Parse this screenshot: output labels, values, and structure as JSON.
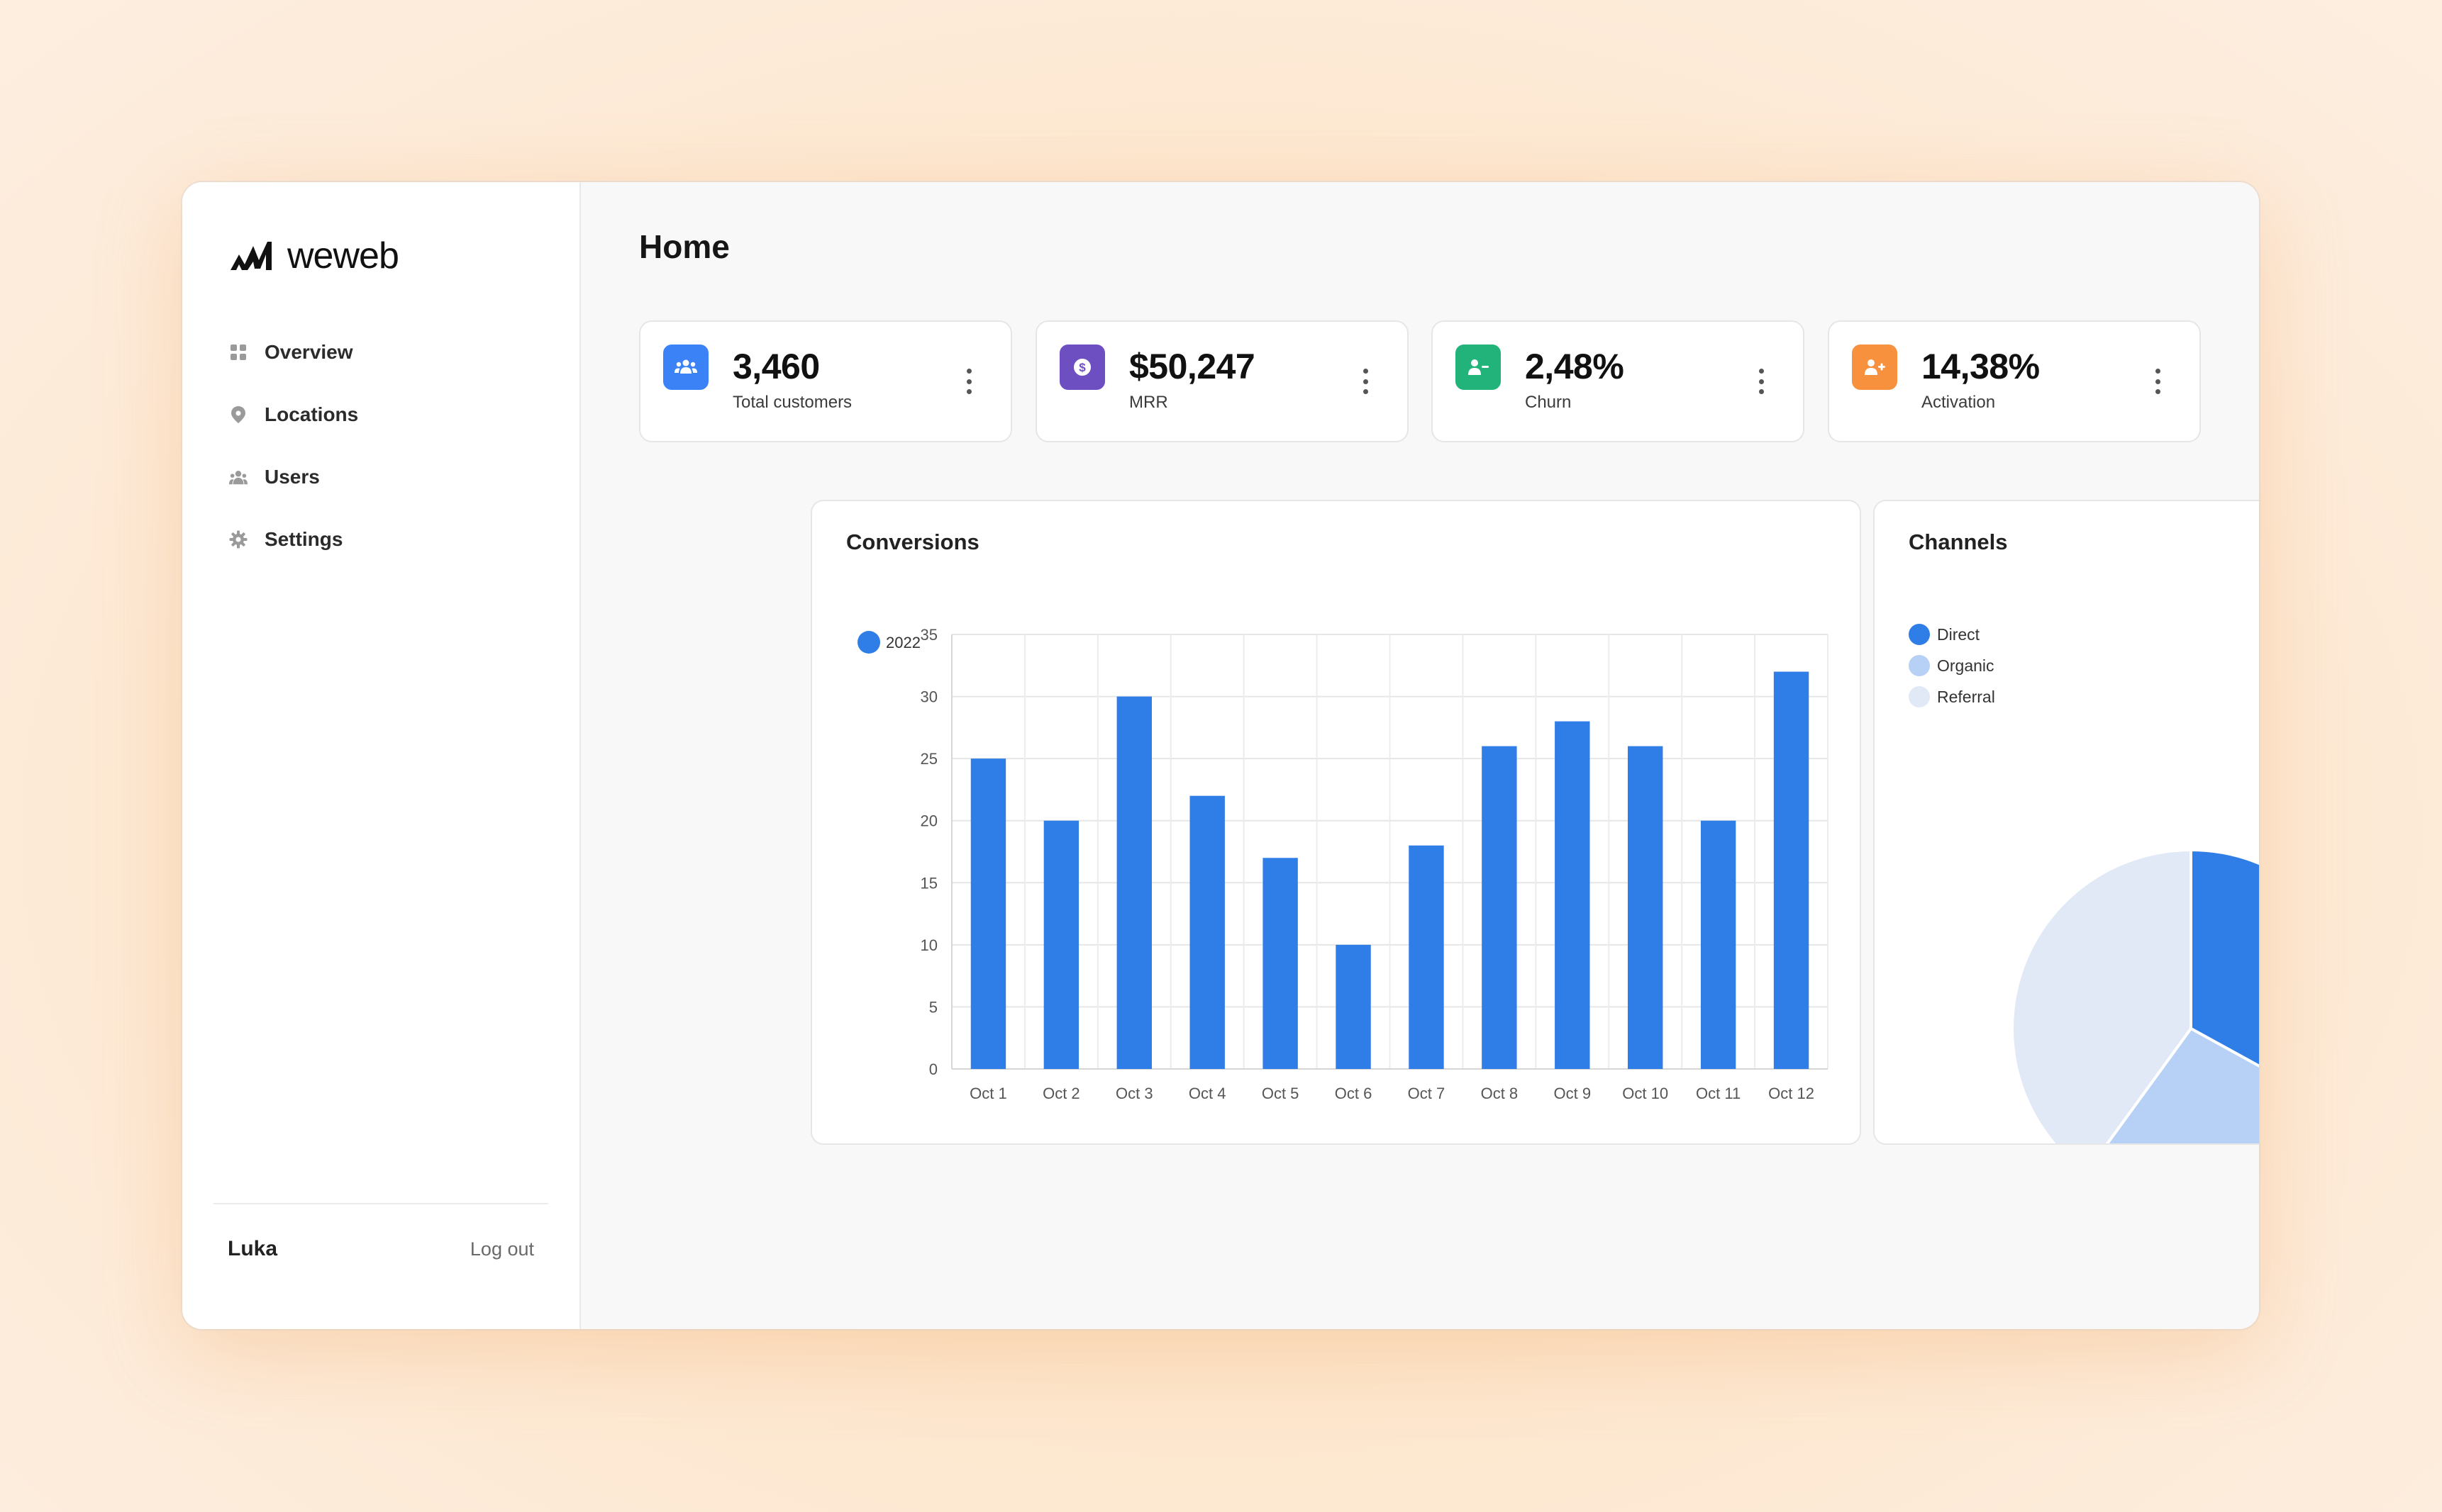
{
  "brand": {
    "name": "weweb"
  },
  "sidebar": {
    "items": [
      {
        "label": "Overview",
        "icon": "grid-icon"
      },
      {
        "label": "Locations",
        "icon": "map-pin-icon"
      },
      {
        "label": "Users",
        "icon": "users-icon"
      },
      {
        "label": "Settings",
        "icon": "gear-icon"
      }
    ],
    "user_name": "Luka",
    "logout_label": "Log out"
  },
  "main": {
    "title": "Home",
    "kpis": [
      {
        "value": "3,460",
        "label": "Total customers",
        "icon": "users-group-icon",
        "color": "#3b82f6"
      },
      {
        "value": "$50,247",
        "label": "MRR",
        "icon": "dollar-coin-icon",
        "color": "#6d4fc2"
      },
      {
        "value": "2,48%",
        "label": "Churn",
        "icon": "user-minus-icon",
        "color": "#22b37a"
      },
      {
        "value": "14,38%",
        "label": "Activation",
        "icon": "user-plus-icon",
        "color": "#f7913d"
      }
    ],
    "conversions_title": "Conversions",
    "channels_title": "Channels"
  },
  "colors": {
    "bar": "#2f7de6",
    "direct": "#2f7de6",
    "organic": "#b6d0f6",
    "referral": "#e1e9f6"
  },
  "chart_data": [
    {
      "type": "bar",
      "title": "Conversions",
      "categories": [
        "Oct 1",
        "Oct 2",
        "Oct 3",
        "Oct 4",
        "Oct 5",
        "Oct 6",
        "Oct 7",
        "Oct 8",
        "Oct 9",
        "Oct 10",
        "Oct 11",
        "Oct 12"
      ],
      "series": [
        {
          "name": "2022",
          "values": [
            25,
            20,
            30,
            22,
            17,
            10,
            18,
            26,
            28,
            26,
            20,
            32
          ]
        }
      ],
      "ylim": [
        0,
        35
      ],
      "yticks": [
        0,
        5,
        10,
        15,
        20,
        25,
        30,
        35
      ],
      "grid": true,
      "legend": "top-left"
    },
    {
      "type": "pie",
      "title": "Channels",
      "labels": [
        "Direct",
        "Organic",
        "Referral"
      ],
      "values": [
        33,
        27,
        40
      ],
      "legend": "top-left"
    }
  ]
}
